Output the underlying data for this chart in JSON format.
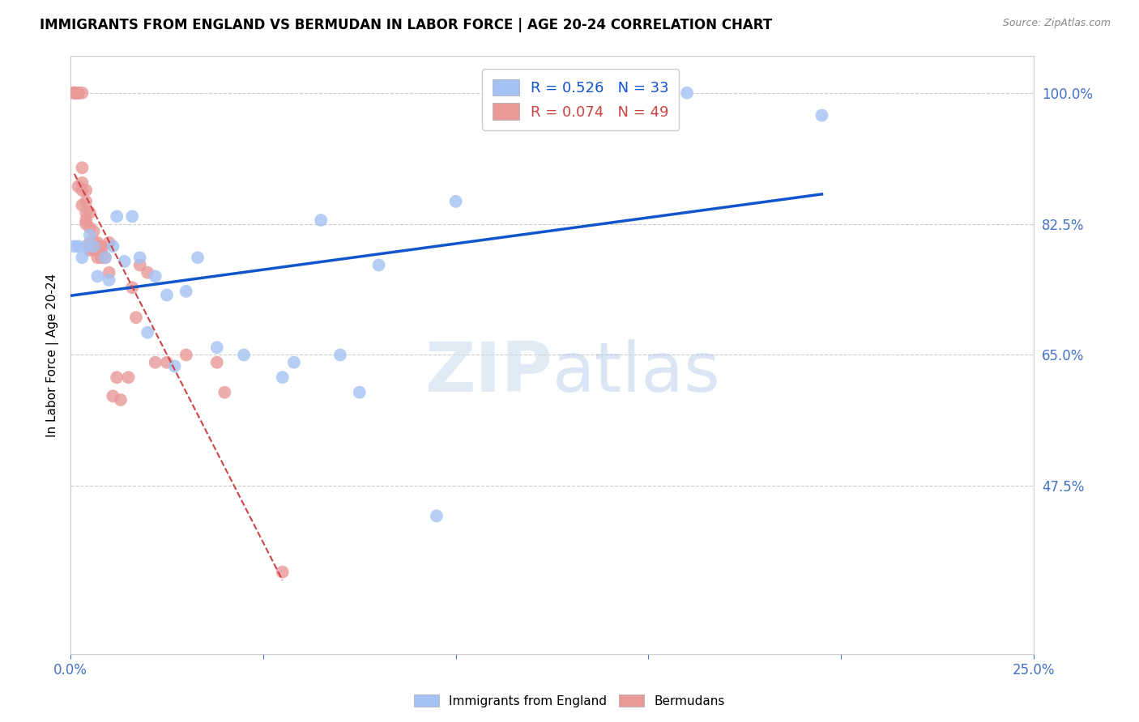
{
  "title": "IMMIGRANTS FROM ENGLAND VS BERMUDAN IN LABOR FORCE | AGE 20-24 CORRELATION CHART",
  "source": "Source: ZipAtlas.com",
  "ylabel": "In Labor Force | Age 20-24",
  "xlim": [
    0.0,
    0.25
  ],
  "ylim": [
    0.25,
    1.05
  ],
  "xticks": [
    0.0,
    0.05,
    0.1,
    0.15,
    0.2,
    0.25
  ],
  "xticklabels": [
    "0.0%",
    "",
    "",
    "",
    "",
    "25.0%"
  ],
  "yticks": [
    0.475,
    0.65,
    0.825,
    1.0
  ],
  "yticklabels": [
    "47.5%",
    "65.0%",
    "82.5%",
    "100.0%"
  ],
  "axis_color": "#4472C4",
  "grid_color": "#CCCCCC",
  "watermark_zip": "ZIP",
  "watermark_atlas": "atlas",
  "england_R": 0.526,
  "england_N": 33,
  "bermuda_R": 0.074,
  "bermuda_N": 49,
  "england_color": "#A4C2F4",
  "bermuda_color": "#EA9999",
  "england_line_color": "#1155CC",
  "bermuda_line_color": "#CC4444",
  "legend_england_label": "Immigrants from England",
  "legend_bermuda_label": "Bermudans",
  "england_x": [
    0.001,
    0.002,
    0.003,
    0.004,
    0.005,
    0.006,
    0.007,
    0.009,
    0.01,
    0.011,
    0.012,
    0.014,
    0.016,
    0.018,
    0.02,
    0.022,
    0.025,
    0.027,
    0.03,
    0.033,
    0.038,
    0.045,
    0.055,
    0.058,
    0.065,
    0.07,
    0.075,
    0.08,
    0.095,
    0.1,
    0.14,
    0.16,
    0.195
  ],
  "england_y": [
    0.795,
    0.795,
    0.78,
    0.795,
    0.81,
    0.795,
    0.755,
    0.78,
    0.75,
    0.795,
    0.835,
    0.775,
    0.835,
    0.78,
    0.68,
    0.755,
    0.73,
    0.635,
    0.735,
    0.78,
    0.66,
    0.65,
    0.62,
    0.64,
    0.83,
    0.65,
    0.6,
    0.77,
    0.435,
    0.855,
    1.0,
    1.0,
    0.97
  ],
  "bermuda_x": [
    0.001,
    0.001,
    0.001,
    0.001,
    0.001,
    0.002,
    0.002,
    0.002,
    0.002,
    0.003,
    0.003,
    0.003,
    0.003,
    0.003,
    0.004,
    0.004,
    0.004,
    0.004,
    0.004,
    0.005,
    0.005,
    0.005,
    0.005,
    0.006,
    0.006,
    0.006,
    0.007,
    0.007,
    0.007,
    0.008,
    0.008,
    0.008,
    0.009,
    0.01,
    0.01,
    0.011,
    0.012,
    0.013,
    0.015,
    0.016,
    0.017,
    0.018,
    0.02,
    0.022,
    0.025,
    0.03,
    0.038,
    0.04,
    0.055
  ],
  "bermuda_y": [
    1.0,
    1.0,
    1.0,
    1.0,
    1.0,
    1.0,
    1.0,
    1.0,
    0.875,
    1.0,
    0.9,
    0.88,
    0.87,
    0.85,
    0.87,
    0.855,
    0.84,
    0.83,
    0.825,
    0.84,
    0.82,
    0.8,
    0.79,
    0.815,
    0.8,
    0.79,
    0.8,
    0.79,
    0.78,
    0.79,
    0.78,
    0.795,
    0.78,
    0.8,
    0.76,
    0.595,
    0.62,
    0.59,
    0.62,
    0.74,
    0.7,
    0.77,
    0.76,
    0.64,
    0.64,
    0.65,
    0.64,
    0.6,
    0.36
  ]
}
